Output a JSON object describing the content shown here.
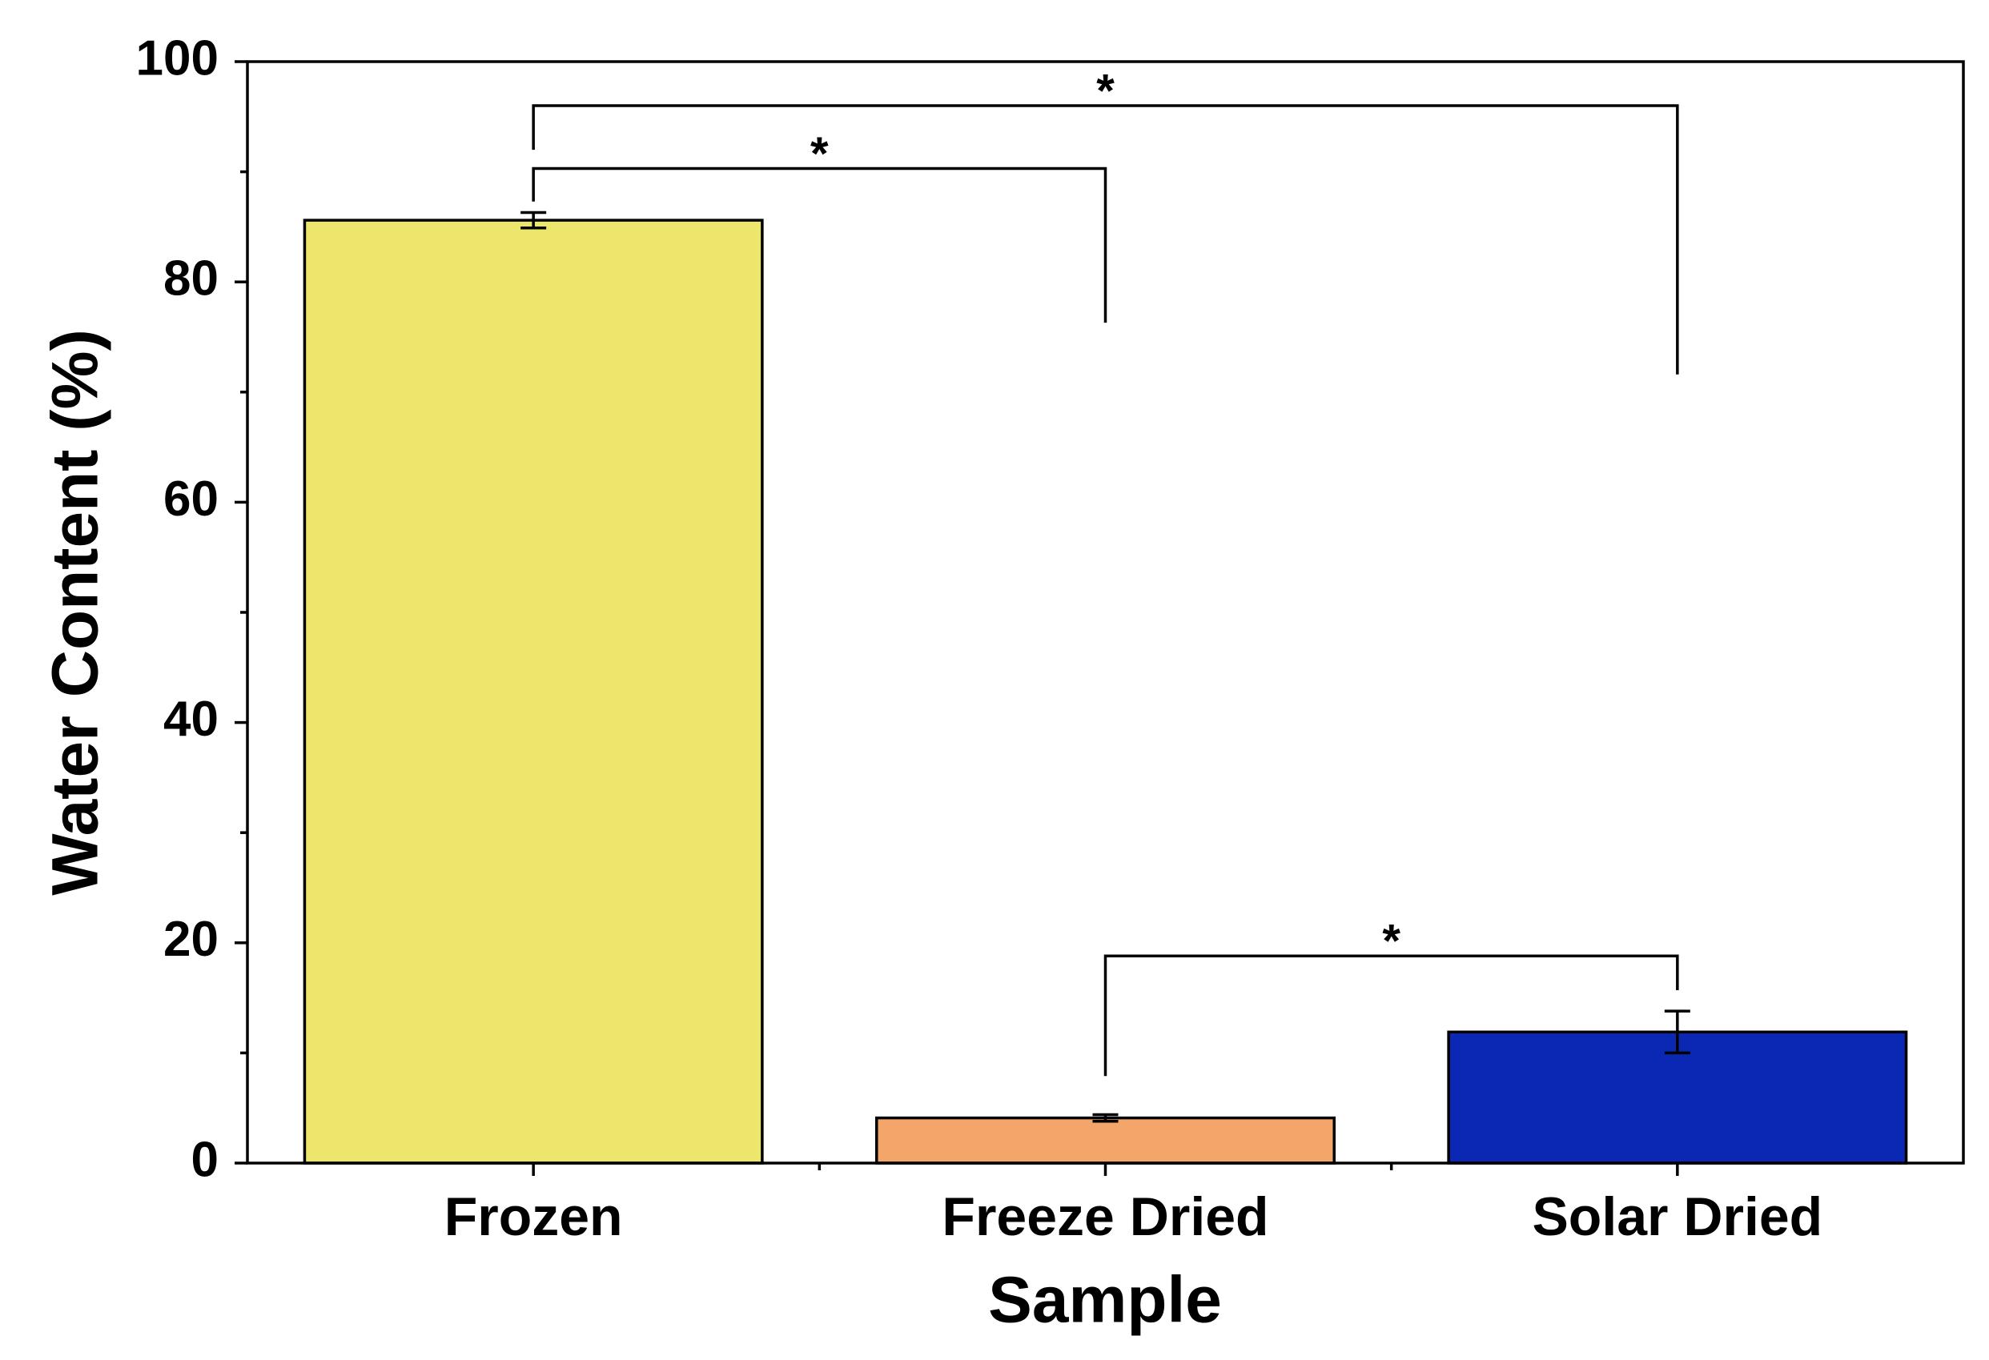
{
  "chart_data": {
    "type": "bar",
    "x_label": "Sample",
    "y_label": "Water Content (%)",
    "categories": [
      "Frozen",
      "Freeze Dried",
      "Solar Dried"
    ],
    "values": [
      85.6,
      4.1,
      11.9
    ],
    "errors": [
      0.7,
      0.3,
      1.9
    ],
    "colors": [
      "#ece66d",
      "#f4a66a",
      "#0a28b4"
    ],
    "ylim": [
      0,
      100
    ],
    "yticks": [
      0,
      20,
      40,
      60,
      80,
      100
    ],
    "significance": [
      {
        "from": 0,
        "to": 2,
        "y": 96,
        "left_end": 92,
        "right_end": 71.6,
        "label": "*"
      },
      {
        "from": 0,
        "to": 1,
        "y": 90.3,
        "left_end": 87.3,
        "right_end": 76.3,
        "label": "*"
      },
      {
        "from": 1,
        "to": 2,
        "y": 18.8,
        "left_end": 7.9,
        "right_end": 15.7,
        "label": "*"
      }
    ]
  }
}
